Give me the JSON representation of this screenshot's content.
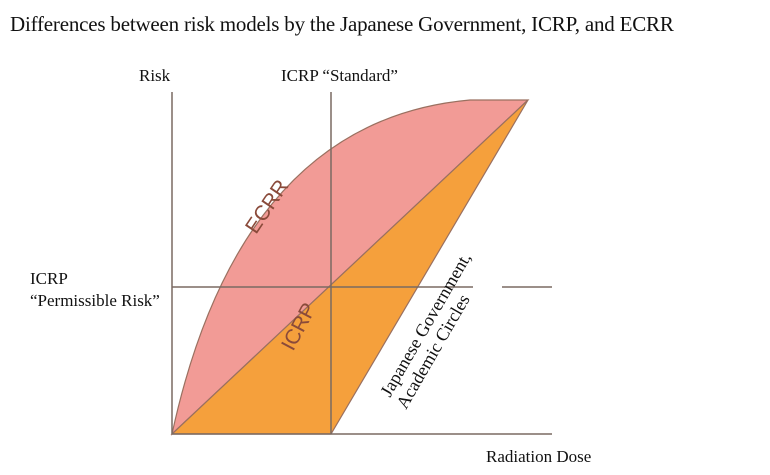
{
  "title": "Differences between risk models by the Japanese Government, ICRP, and ECRR",
  "axes": {
    "y_label": "Risk",
    "x_label": "Radiation Dose",
    "standard_label": "ICRP “Standard”",
    "permissible_label_line1": "ICRP",
    "permissible_label_line2": "“Permissible Risk”"
  },
  "models": {
    "ecrr": {
      "label": "ECRR",
      "color": "#f29b96"
    },
    "icrp": {
      "label": "ICRP",
      "color": "#f5a03c"
    },
    "government": {
      "label_line1": "Japanese Government,",
      "label_line2": "Academic Circles"
    }
  },
  "colors": {
    "axis_line": "#7a6a62",
    "outline": "#9a7060"
  }
}
